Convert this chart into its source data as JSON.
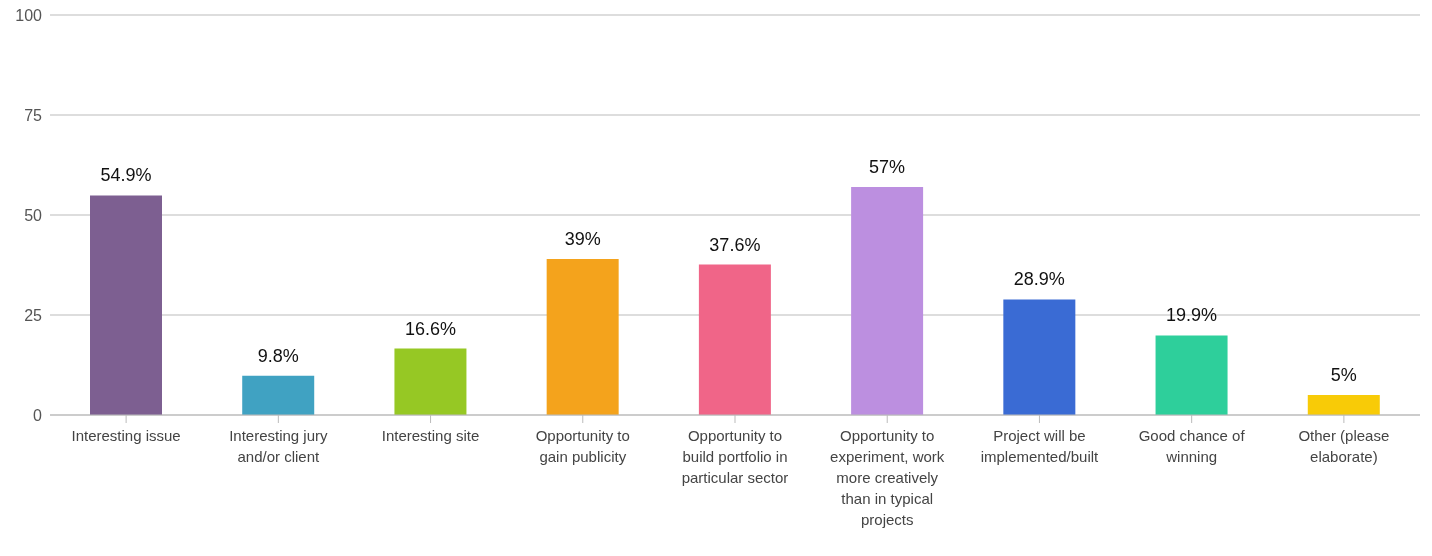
{
  "chart_data": {
    "type": "bar",
    "categories": [
      "Interesting issue",
      "Interesting jury and/or client",
      "Interesting site",
      "Opportunity to gain publicity",
      "Opportunity to build portfolio in particular sector",
      "Opportunity to experiment, work more creatively than in typical projects",
      "Project will be implemented/built",
      "Good chance of winning",
      "Other (please elaborate)"
    ],
    "values": [
      54.9,
      9.8,
      16.6,
      39,
      37.6,
      57,
      28.9,
      19.9,
      5
    ],
    "colors": [
      "#7d5f91",
      "#40a2c2",
      "#96c824",
      "#f4a31c",
      "#f06588",
      "#bc8fe0",
      "#3a6bd4",
      "#2ecf9b",
      "#f8cb07"
    ],
    "value_labels": [
      "54.9%",
      "9.8%",
      "16.6%",
      "39%",
      "37.6%",
      "57%",
      "28.9%",
      "19.9%",
      "5%"
    ],
    "ylim": [
      0,
      100
    ],
    "yticks": [
      0,
      25,
      50,
      75,
      100
    ],
    "grid": "y"
  }
}
